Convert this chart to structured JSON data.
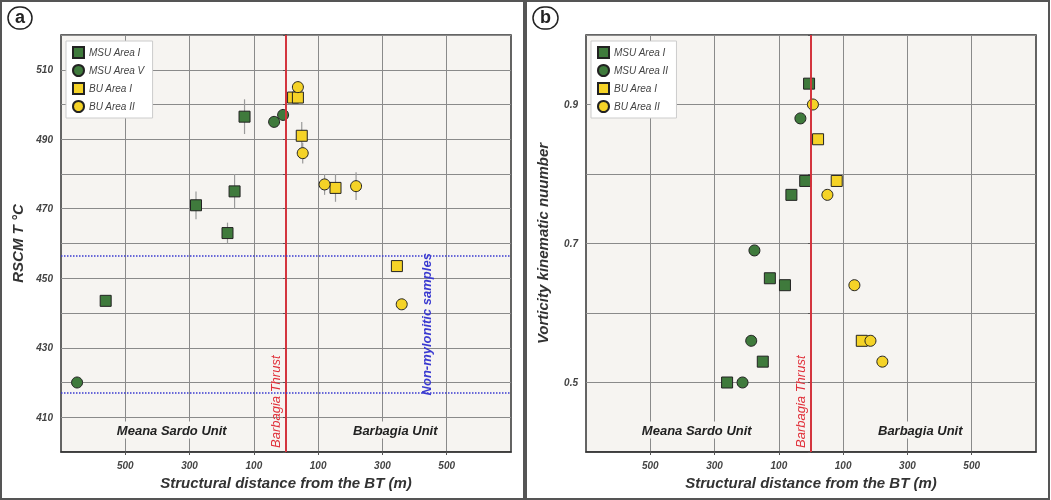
{
  "chart_data": [
    {
      "type": "scatter",
      "title": "a",
      "xlabel": "Structural distance from the BT (m)",
      "ylabel": "RSCM T °C",
      "xlim": [
        -700,
        700
      ],
      "xticks": [
        {
          "value": -500,
          "label": "500"
        },
        {
          "value": -300,
          "label": "300"
        },
        {
          "value": -100,
          "label": "100"
        },
        {
          "value": 100,
          "label": "100"
        },
        {
          "value": 300,
          "label": "300"
        },
        {
          "value": 500,
          "label": "500"
        }
      ],
      "ylim": [
        400,
        520
      ],
      "yticks": [
        410,
        {
          "value": 420,
          "label": null
        },
        430,
        {
          "value": 440,
          "label": null
        },
        450,
        {
          "value": 460,
          "label": null
        },
        470,
        {
          "value": 480,
          "label": null
        },
        490,
        {
          "value": 500,
          "label": null
        },
        510
      ],
      "grid": true,
      "legend": "top left",
      "series": [
        {
          "name": "MSU Area I",
          "color": "#3f7a3c",
          "marker": "square",
          "x": [
            -561,
            -280,
            -182,
            -160,
            -129
          ],
          "values": [
            443.5,
            471,
            463,
            475,
            496.5
          ],
          "errors": [
            null,
            4,
            3,
            5,
            5
          ]
        },
        {
          "name": "MSU Area V",
          "color": "#3f7a3c",
          "marker": "circle",
          "x": [
            -650,
            -37,
            -9
          ],
          "values": [
            420,
            495,
            497
          ]
        },
        {
          "name": "BU Area I",
          "color": "#f5d327",
          "marker": "square",
          "x": [
            22,
            37,
            49,
            154,
            345
          ],
          "values": [
            502,
            502,
            491,
            476,
            453.5
          ],
          "errors": [
            null,
            null,
            4,
            4,
            null
          ]
        },
        {
          "name": "BU Area II",
          "color": "#f5d327",
          "marker": "circle",
          "x": [
            37,
            52,
            120,
            218,
            360
          ],
          "values": [
            505,
            486,
            477,
            476.5,
            442.5
          ],
          "errors": [
            null,
            3,
            3,
            4,
            null
          ]
        }
      ],
      "ref_lines": [
        {
          "axis": "x",
          "value": 0,
          "label": "Barbagia Thrust",
          "color": "#e0303a",
          "line_style": "solid"
        },
        {
          "axis": "y",
          "value": 456.5,
          "label": "Non-mylonitic samples",
          "color": "#3a3ad0",
          "line_style": "dotted"
        },
        {
          "axis": "y",
          "value": 417,
          "label": null,
          "color": "#3a3ad0",
          "line_style": "dotted"
        }
      ],
      "annotations": [
        "Meana Sardo Unit",
        "Barbagia Unit"
      ]
    },
    {
      "type": "scatter",
      "title": "b",
      "xlabel": "Structural distance from the BT (m)",
      "ylabel": "Vorticity kinematic nuumber",
      "xlim": [
        -700,
        700
      ],
      "xticks": [
        {
          "value": -500,
          "label": "500"
        },
        {
          "value": -300,
          "label": "300"
        },
        {
          "value": -100,
          "label": "100"
        },
        {
          "value": 100,
          "label": "100"
        },
        {
          "value": 300,
          "label": "300"
        },
        {
          "value": 500,
          "label": "500"
        }
      ],
      "ylim": [
        0.4,
        1.0
      ],
      "yticks": [
        0.5,
        {
          "value": 0.6,
          "label": null
        },
        0.7,
        {
          "value": 0.8,
          "label": null
        },
        0.9
      ],
      "grid": true,
      "legend": "top left",
      "series": [
        {
          "name": "MSU Area I",
          "color": "#3f7a3c",
          "marker": "square",
          "x": [
            -6,
            -18,
            -61,
            -128,
            -81,
            -150,
            -261
          ],
          "values": [
            0.93,
            0.79,
            0.77,
            0.65,
            0.64,
            0.53,
            0.5
          ]
        },
        {
          "name": "MSU Area II",
          "color": "#3f7a3c",
          "marker": "circle",
          "x": [
            -33,
            -176,
            -186,
            -213
          ],
          "values": [
            0.88,
            0.69,
            0.56,
            0.5
          ]
        },
        {
          "name": "BU Area I",
          "color": "#f5d327",
          "marker": "square",
          "x": [
            22,
            80,
            158
          ],
          "values": [
            0.85,
            0.79,
            0.56
          ]
        },
        {
          "name": "BU Area II",
          "color": "#f5d327",
          "marker": "circle",
          "x": [
            6,
            51,
            135,
            185,
            222
          ],
          "values": [
            0.9,
            0.77,
            0.64,
            0.56,
            0.53
          ]
        }
      ],
      "ref_lines": [
        {
          "axis": "x",
          "value": 0,
          "label": "Barbagia Thrust",
          "color": "#e0303a",
          "line_style": "solid"
        }
      ],
      "annotations": [
        "Meana Sardo Unit",
        "Barbagia Unit"
      ]
    }
  ]
}
